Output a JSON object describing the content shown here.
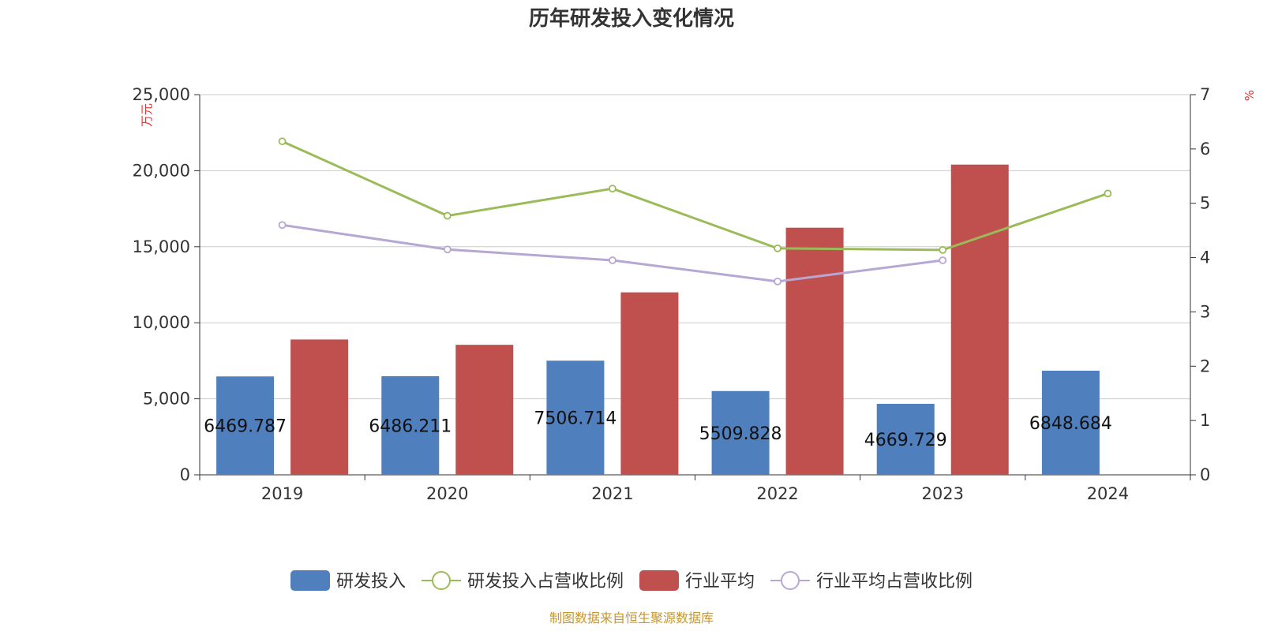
{
  "chart_data": {
    "type": "bar",
    "title": "历年研发投入变化情况",
    "left_unit": "万元",
    "right_unit": "%",
    "categories": [
      "2019",
      "2020",
      "2021",
      "2022",
      "2023",
      "2024"
    ],
    "left_axis": {
      "min": 0,
      "max": 25000,
      "ticks": [
        "0",
        "5,000",
        "10,000",
        "15,000",
        "20,000",
        "25,000"
      ]
    },
    "right_axis": {
      "min": 0,
      "max": 7,
      "ticks": [
        "0",
        "1",
        "2",
        "3",
        "4",
        "5",
        "6",
        "7"
      ]
    },
    "grid": true,
    "legend_position": "bottom",
    "series": [
      {
        "name": "研发投入",
        "kind": "bar",
        "axis": "left",
        "color": "#4f7fbd",
        "values": [
          6469.787,
          6486.211,
          7506.714,
          5509.828,
          4669.729,
          6848.684
        ],
        "labels": [
          "6469.787",
          "6486.211",
          "7506.714",
          "5509.828",
          "4669.729",
          "6848.684"
        ]
      },
      {
        "name": "研发投入占营收比例",
        "kind": "line",
        "axis": "right",
        "color": "#9bbb59",
        "values": [
          6.14,
          4.77,
          5.27,
          4.17,
          4.14,
          5.18
        ]
      },
      {
        "name": "行业平均",
        "kind": "bar",
        "axis": "left",
        "color": "#c0504d",
        "values": [
          8900,
          8550,
          12000,
          16250,
          20400,
          null
        ]
      },
      {
        "name": "行业平均占营收比例",
        "kind": "line",
        "axis": "right",
        "color": "#b7a7d2",
        "values": [
          4.6,
          4.15,
          3.95,
          3.56,
          3.95,
          null
        ]
      }
    ]
  },
  "source": "制图数据来自恒生聚源数据库",
  "colors": {
    "axis_unit": "#e03131",
    "source": "#c8962a",
    "grid": "#cccccc",
    "axis": "#333333"
  }
}
